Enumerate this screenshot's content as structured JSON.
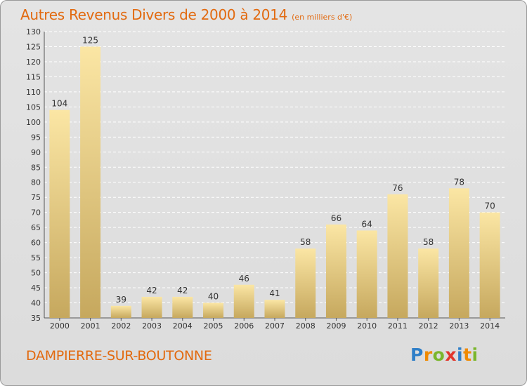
{
  "title": "Autres Revenus Divers de 2000 à 2014",
  "subtitle": "(en milliers d'€)",
  "commune": "DAMPIERRE-SUR-BOUTONNE",
  "logo": {
    "letters": [
      "P",
      "r",
      "o",
      "x",
      "i",
      "t",
      "i"
    ],
    "colors": [
      "#2f7fc8",
      "#f08a00",
      "#7ab62c",
      "#e2362b",
      "#2f7fc8",
      "#f08a00",
      "#7ab62c"
    ]
  },
  "colors": {
    "accent": "#e26a10",
    "bar_light": "#fbe6a4",
    "bar_dark": "#c6a85e"
  },
  "chart_data": {
    "type": "bar",
    "categories": [
      "2000",
      "2001",
      "2002",
      "2003",
      "2004",
      "2005",
      "2006",
      "2007",
      "2008",
      "2009",
      "2010",
      "2011",
      "2012",
      "2013",
      "2014"
    ],
    "values": [
      104,
      125,
      39,
      42,
      42,
      40,
      46,
      41,
      58,
      66,
      64,
      76,
      58,
      78,
      70
    ],
    "title": "Autres Revenus Divers de 2000 à 2014",
    "subtitle": "(en milliers d'€)",
    "xlabel": "",
    "ylabel": "",
    "ylim": [
      35,
      130
    ],
    "yticks": [
      35,
      40,
      45,
      50,
      55,
      60,
      65,
      70,
      75,
      80,
      85,
      90,
      95,
      100,
      105,
      110,
      115,
      120,
      125,
      130
    ],
    "grid": true,
    "legend": "none"
  }
}
